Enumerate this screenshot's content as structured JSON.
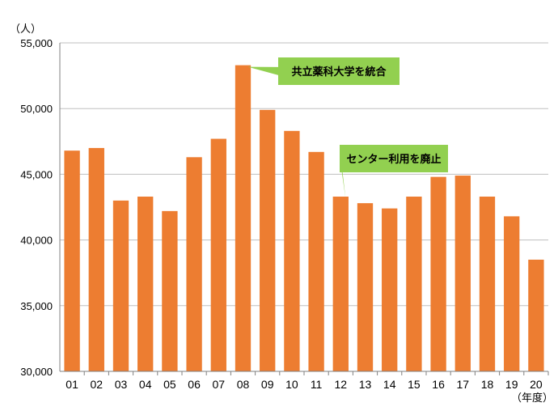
{
  "chart_data": {
    "type": "bar",
    "y_unit_label": "（人）",
    "x_unit_label": "（年度）",
    "categories": [
      "01",
      "02",
      "03",
      "04",
      "05",
      "06",
      "07",
      "08",
      "09",
      "10",
      "11",
      "12",
      "13",
      "14",
      "15",
      "16",
      "17",
      "18",
      "19",
      "20"
    ],
    "values": [
      46800,
      47000,
      43000,
      43300,
      42200,
      46300,
      47700,
      53300,
      49900,
      48300,
      46700,
      43300,
      42800,
      42400,
      43300,
      44800,
      44900,
      43300,
      41800,
      38500
    ],
    "ylim": [
      30000,
      55000
    ],
    "yticks": [
      30000,
      35000,
      40000,
      45000,
      50000,
      55000
    ],
    "ytick_labels": [
      "30,000",
      "35,000",
      "40,000",
      "45,000",
      "50,000",
      "55,000"
    ],
    "grid": "horizontal",
    "bar_color": "#ED7D31",
    "annotations": [
      {
        "text": "共立薬科大学を統合",
        "category": "08",
        "color": "#92D050"
      },
      {
        "text": "センター利用を廃止",
        "category": "12",
        "color": "#92D050"
      }
    ]
  }
}
